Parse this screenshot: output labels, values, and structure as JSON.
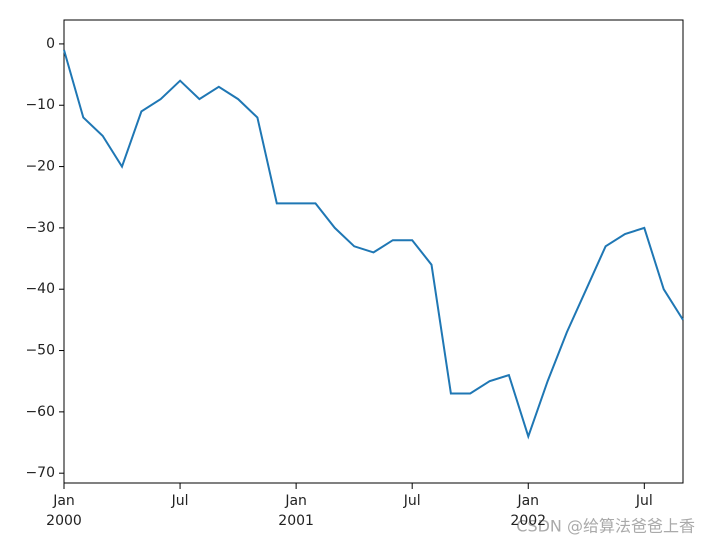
{
  "chart_data": {
    "type": "line",
    "color": "#1f77b4",
    "x": [
      "2000-01",
      "2000-02",
      "2000-03",
      "2000-04",
      "2000-05",
      "2000-06",
      "2000-07",
      "2000-08",
      "2000-09",
      "2000-10",
      "2000-11",
      "2000-12",
      "2001-01",
      "2001-02",
      "2001-03",
      "2001-04",
      "2001-05",
      "2001-06",
      "2001-07",
      "2001-08",
      "2001-09",
      "2001-10",
      "2001-11",
      "2001-12",
      "2002-01",
      "2002-02",
      "2002-03",
      "2002-04",
      "2002-05",
      "2002-06",
      "2002-07",
      "2002-08",
      "2002-09"
    ],
    "values": [
      -1,
      -12,
      -15,
      -20,
      -11,
      -9,
      -6,
      -9,
      -7,
      -9,
      -12,
      -26,
      -26,
      -26,
      -30,
      -33,
      -34,
      -32,
      -32,
      -36,
      -57,
      -57,
      -55,
      -54,
      -64,
      -55,
      -47,
      -40,
      -33,
      -31,
      -30,
      -40,
      -45
    ],
    "xlim": [
      "2000-01",
      "2002-09"
    ],
    "xticks": [
      {
        "value": "2000-01",
        "label": "Jan",
        "sublabel": "2000"
      },
      {
        "value": "2000-07",
        "label": "Jul"
      },
      {
        "value": "2001-01",
        "label": "Jan",
        "sublabel": "2001"
      },
      {
        "value": "2001-07",
        "label": "Jul"
      },
      {
        "value": "2002-01",
        "label": "Jan",
        "sublabel": "2002"
      },
      {
        "value": "2002-07",
        "label": "Jul"
      }
    ],
    "ylim": [
      -71.6,
      3.9
    ],
    "yticks": [
      {
        "value": 0,
        "label": "0"
      },
      {
        "value": -10,
        "label": "−10"
      },
      {
        "value": -20,
        "label": "−20"
      },
      {
        "value": -30,
        "label": "−30"
      },
      {
        "value": -40,
        "label": "−40"
      },
      {
        "value": -50,
        "label": "−50"
      },
      {
        "value": -60,
        "label": "−60"
      },
      {
        "value": -70,
        "label": "−70"
      }
    ],
    "watermark": "CSDN @给算法爸爸上香"
  }
}
